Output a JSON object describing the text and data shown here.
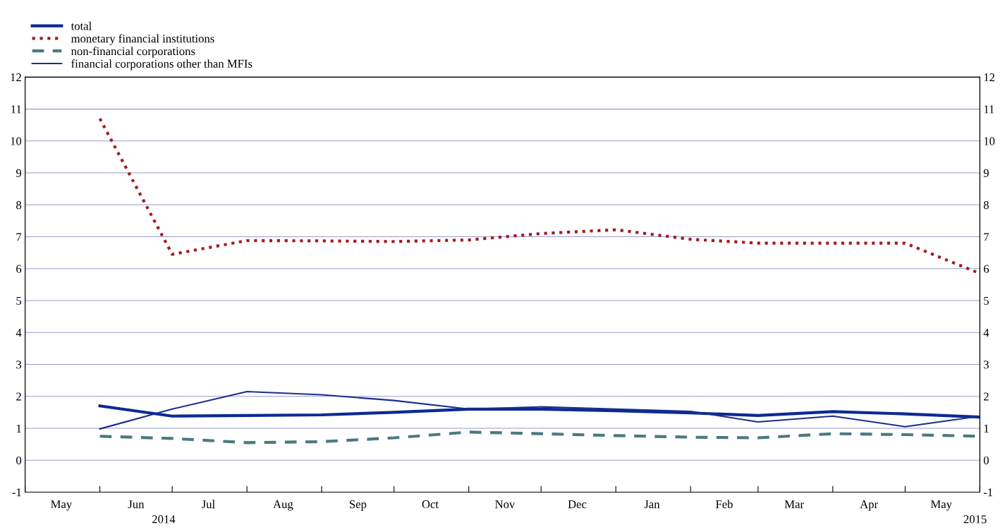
{
  "chart_data": {
    "type": "line",
    "x": [
      "2014-06-01",
      "2014-07-01",
      "2014-08-01",
      "2014-09-01",
      "2014-10-01",
      "2014-11-01",
      "2014-12-01",
      "2015-01-01",
      "2015-02-01",
      "2015-03-01",
      "2015-04-01",
      "2015-05-01",
      "2015-06-01"
    ],
    "xlim": [
      "2014-05-01",
      "2015-06-01"
    ],
    "xticks": [
      {
        "value": "2014-05-01",
        "label": null
      },
      {
        "value": "2014-05-16",
        "label": "May"
      },
      {
        "value": "2014-06-01",
        "label": null
      },
      {
        "value": "2014-06-16",
        "label": "Jun"
      },
      {
        "value": "2014-07-01",
        "label": null
      },
      {
        "value": "2014-07-16",
        "label": "Jul"
      },
      {
        "value": "2014-08-01",
        "label": null
      },
      {
        "value": "2014-08-16",
        "label": "Aug"
      },
      {
        "value": "2014-09-01",
        "label": null
      },
      {
        "value": "2014-09-16",
        "label": "Sep"
      },
      {
        "value": "2014-10-01",
        "label": null
      },
      {
        "value": "2014-10-16",
        "label": "Oct"
      },
      {
        "value": "2014-11-01",
        "label": null
      },
      {
        "value": "2014-11-16",
        "label": "Nov"
      },
      {
        "value": "2014-12-01",
        "label": null
      },
      {
        "value": "2014-12-16",
        "label": "Dec"
      },
      {
        "value": "2015-01-01",
        "label": null
      },
      {
        "value": "2015-01-16",
        "label": "Jan"
      },
      {
        "value": "2015-02-01",
        "label": null
      },
      {
        "value": "2015-02-15",
        "label": "Feb"
      },
      {
        "value": "2015-03-01",
        "label": null
      },
      {
        "value": "2015-03-16",
        "label": "Mar"
      },
      {
        "value": "2015-04-01",
        "label": null
      },
      {
        "value": "2015-04-16",
        "label": "Apr"
      },
      {
        "value": "2015-05-01",
        "label": null
      },
      {
        "value": "2015-05-16",
        "label": "May"
      },
      {
        "value": "2015-06-01",
        "label": null
      }
    ],
    "ylim": [
      -1,
      12
    ],
    "yticks": [
      -1,
      0,
      1,
      2,
      3,
      4,
      5,
      6,
      7,
      8,
      9,
      10,
      11,
      12
    ],
    "y2lim": [
      -1,
      12
    ],
    "y2ticks": [
      -1,
      0,
      1,
      2,
      3,
      4,
      5,
      6,
      7,
      8,
      9,
      10,
      11,
      12
    ],
    "grid": "y",
    "legend": "top left",
    "annotations": [
      "2014",
      "2015"
    ],
    "series": [
      {
        "name": "total",
        "color": "#0c2a94",
        "line_style": "solid",
        "values": [
          1.7,
          1.38,
          1.4,
          1.42,
          1.5,
          1.6,
          1.6,
          1.55,
          1.48,
          1.4,
          1.52,
          1.45,
          1.35
        ]
      },
      {
        "name": "monetary financial institutions",
        "color": "#a11d1d",
        "line_style": "dotted",
        "values": [
          10.7,
          6.45,
          6.88,
          6.87,
          6.85,
          6.9,
          7.1,
          7.22,
          6.92,
          6.8,
          6.8,
          6.8,
          5.85
        ]
      },
      {
        "name": "non-financial corporations",
        "color": "#4a7a80",
        "line_style": "dashed",
        "values": [
          0.75,
          0.68,
          0.55,
          0.58,
          0.7,
          0.88,
          0.83,
          0.77,
          0.72,
          0.7,
          0.83,
          0.8,
          0.75
        ]
      },
      {
        "name": "financial corporations other than MFIs",
        "color": "#1a2f8c",
        "line_style": "solid",
        "values": [
          0.98,
          1.6,
          2.15,
          2.05,
          1.87,
          1.6,
          1.67,
          1.6,
          1.53,
          1.2,
          1.38,
          1.05,
          1.38
        ]
      }
    ]
  }
}
